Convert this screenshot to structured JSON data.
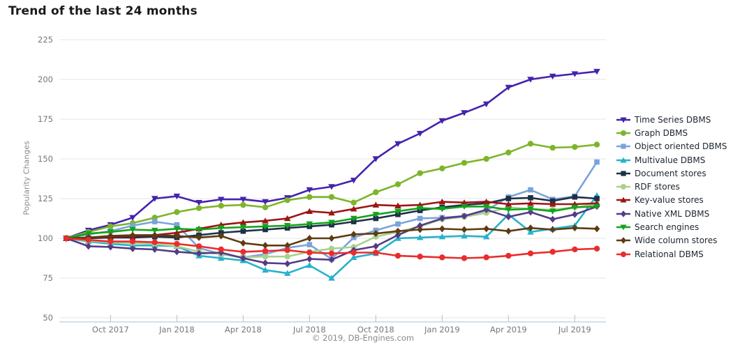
{
  "title": "Trend of the last 24 months",
  "footer": "© 2019, DB-Engines.com",
  "colors": {
    "grid": "#e4e4e4",
    "axis": "#a9c2d4",
    "tick_text": "#777777",
    "title_text": "#1a1a1a",
    "legend_text": "#1c2430",
    "footer_text": "#8a8a8a"
  },
  "chart_data": {
    "type": "line",
    "title": "Trend of the last 24 months",
    "xlabel": "",
    "ylabel": "Popularity Changes",
    "ylim": [
      50,
      225
    ],
    "yticks": [
      225,
      200,
      175,
      150,
      125,
      100,
      75,
      50
    ],
    "grid": true,
    "legend_position": "right",
    "xtick_labels": [
      "Oct 2017",
      "Jan 2018",
      "Apr 2018",
      "Jul 2018",
      "Oct 2018",
      "Jan 2019",
      "Apr 2019",
      "Jul 2019"
    ],
    "months": [
      "Aug 2017",
      "Sep 2017",
      "Oct 2017",
      "Nov 2017",
      "Dec 2017",
      "Jan 2018",
      "Feb 2018",
      "Mar 2018",
      "Apr 2018",
      "May 2018",
      "Jun 2018",
      "Jul 2018",
      "Aug 2018",
      "Sep 2018",
      "Oct 2018",
      "Nov 2018",
      "Dec 2018",
      "Jan 2019",
      "Feb 2019",
      "Mar 2019",
      "Apr 2019",
      "May 2019",
      "Jun 2019",
      "Jul 2019",
      "Aug 2019"
    ],
    "series": [
      {
        "name": "Time Series DBMS",
        "color": "#4522ad",
        "marker": "triangle-down",
        "values": [
          100,
          105,
          108.5,
          113,
          125,
          126.5,
          122.5,
          124.5,
          124.5,
          123,
          125.5,
          130.5,
          132.5,
          136.5,
          150,
          159.5,
          166,
          174,
          179,
          184.5,
          195,
          200,
          202,
          203.5,
          205
        ]
      },
      {
        "name": "Graph DBMS",
        "color": "#7db529",
        "marker": "circle",
        "values": [
          100,
          104,
          107.5,
          109.5,
          113,
          116.5,
          119,
          120.5,
          121,
          119.5,
          124,
          126,
          126,
          122.5,
          129,
          134,
          141,
          144,
          147.5,
          150,
          154,
          159.5,
          157,
          157.5,
          159
        ]
      },
      {
        "name": "Object oriented DBMS",
        "color": "#7aa4da",
        "marker": "square",
        "values": [
          100,
          102.5,
          104.5,
          108,
          110.5,
          108.5,
          94,
          90,
          88,
          90,
          94,
          96,
          87,
          100.5,
          105,
          109,
          112.5,
          113,
          114,
          117.5,
          126,
          130.5,
          124.5,
          126.5,
          148
        ]
      },
      {
        "name": "Multivalue DBMS",
        "color": "#27b1ca",
        "marker": "triangle-up",
        "values": [
          100,
          98,
          96.5,
          95.5,
          95.5,
          95,
          89,
          87.5,
          86,
          80,
          78,
          83,
          75,
          88,
          90.5,
          100,
          100.5,
          101,
          101.5,
          101,
          115,
          104,
          106,
          108,
          127
        ]
      },
      {
        "name": "Document stores",
        "color": "#1e3048",
        "marker": "square",
        "values": [
          100,
          100,
          100.5,
          100.5,
          101,
          100.5,
          102,
          103.5,
          104.5,
          105.5,
          106.5,
          107.5,
          108.5,
          110.5,
          112.5,
          115,
          117.5,
          119.5,
          121,
          122,
          125,
          125.5,
          123.5,
          126,
          125
        ]
      },
      {
        "name": "RDF stores",
        "color": "#a9d18e",
        "marker": "circle",
        "values": [
          100,
          98.5,
          97.5,
          97,
          96.5,
          95,
          91.5,
          90,
          88,
          88.5,
          88.5,
          91.5,
          93.5,
          94.5,
          101,
          104,
          107.5,
          112,
          113.5,
          116,
          119.5,
          118.5,
          118,
          119.5,
          121.5
        ]
      },
      {
        "name": "Key-value stores",
        "color": "#9c1414",
        "marker": "triangle-up",
        "values": [
          100,
          100.5,
          101,
          101.5,
          102,
          103.5,
          106,
          108.5,
          110,
          111,
          112.5,
          117,
          116,
          118.5,
          121,
          120.5,
          121,
          123,
          122.5,
          123,
          121.5,
          122,
          121.5,
          121.5,
          122
        ]
      },
      {
        "name": "Native XML DBMS",
        "color": "#553a86",
        "marker": "diamond",
        "values": [
          100,
          95,
          94.5,
          93.5,
          93,
          91.5,
          90.5,
          91,
          87.5,
          84.5,
          84,
          87,
          86.5,
          92.5,
          95,
          102,
          108,
          112.5,
          114,
          118,
          113.5,
          116.5,
          112,
          115,
          120
        ]
      },
      {
        "name": "Search engines",
        "color": "#12a41b",
        "marker": "triangle-down",
        "values": [
          100,
          103,
          104,
          105.5,
          105,
          106,
          105.5,
          106.5,
          107,
          107.5,
          108,
          109,
          110,
          112.5,
          115,
          117,
          119,
          118.5,
          120,
          120,
          118,
          118.5,
          117,
          119.5,
          120
        ]
      },
      {
        "name": "Wide column stores",
        "color": "#5f3b11",
        "marker": "diamond",
        "values": [
          100,
          100.5,
          101.5,
          102,
          102,
          101.5,
          100.5,
          101.5,
          97,
          95.5,
          95.5,
          100,
          100,
          102.5,
          103,
          104.5,
          105.5,
          106,
          105.5,
          106,
          104.5,
          106.5,
          105.5,
          106.5,
          106
        ]
      },
      {
        "name": "Relational DBMS",
        "color": "#ea2c2c",
        "marker": "circle",
        "values": [
          100,
          99,
          98,
          98,
          97.5,
          96.5,
          95,
          93,
          91.5,
          92,
          92.5,
          91,
          90.5,
          91,
          91,
          89,
          88.5,
          88,
          87.5,
          88,
          89,
          90.5,
          91.5,
          93,
          93.5
        ]
      }
    ]
  }
}
